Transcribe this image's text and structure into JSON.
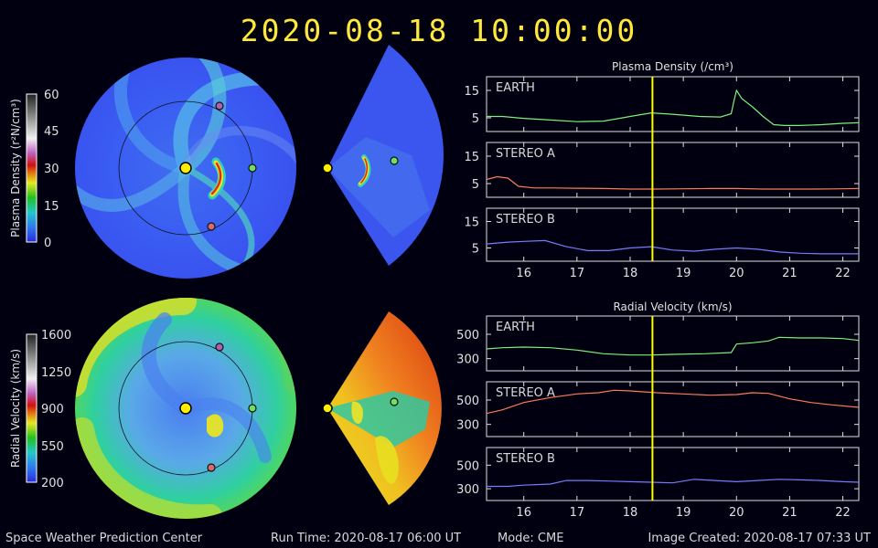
{
  "header": {
    "timestamp": "2020-08-18  10:00:00"
  },
  "colorbars": {
    "density": {
      "label": "Plasma Density (r²N/cm³)",
      "ticks": [
        "60",
        "45",
        "30",
        "15",
        "0"
      ]
    },
    "velocity": {
      "label": "Radial Velocity (km/s)",
      "ticks": [
        "1600",
        "1250",
        "900",
        "550",
        "200"
      ]
    }
  },
  "footer": {
    "org": "Space Weather Prediction Center",
    "run_time": "Run Time: 2020-08-17 06:00 UT",
    "mode": "Mode: CME",
    "created": "Image Created: 2020-08-17 07:33 UT"
  },
  "colors": {
    "title": "#ffe83a",
    "earth": "#7cf07c",
    "stereo_a": "#ff7a5a",
    "stereo_b": "#7a7aff",
    "cursor": "#ffff00"
  },
  "chart_data": [
    {
      "type": "line",
      "title": "Plasma Density (/cm³)",
      "xlim": [
        15.3,
        22.3
      ],
      "x_ticks": [
        16,
        17,
        18,
        19,
        20,
        21,
        22
      ],
      "current_time_x": 18.42,
      "panels": [
        {
          "name": "EARTH",
          "color": "#7cf07c",
          "ylim": [
            0,
            20
          ],
          "y_ticks": [
            5,
            15
          ],
          "x": [
            15.3,
            15.6,
            16.0,
            16.5,
            17.0,
            17.5,
            18.0,
            18.4,
            18.8,
            19.3,
            19.7,
            19.9,
            19.95,
            20.0,
            20.1,
            20.3,
            20.5,
            20.7,
            20.9,
            21.2,
            21.6,
            22.0,
            22.3
          ],
          "y": [
            5.5,
            5.5,
            4.8,
            4.2,
            3.6,
            3.8,
            5.5,
            6.8,
            6.3,
            5.5,
            5.3,
            6.5,
            11,
            15,
            12,
            9,
            5.5,
            2.5,
            2.2,
            2.2,
            2.5,
            3.0,
            3.2
          ]
        },
        {
          "name": "STEREO A",
          "color": "#ff7a5a",
          "ylim": [
            0,
            20
          ],
          "y_ticks": [
            5,
            15
          ],
          "x": [
            15.3,
            15.5,
            15.7,
            15.9,
            16.2,
            16.6,
            17.0,
            17.5,
            18.0,
            18.5,
            19.0,
            19.5,
            20.0,
            20.5,
            21.0,
            21.5,
            22.0,
            22.3
          ],
          "y": [
            6.5,
            7.5,
            7.0,
            4.0,
            3.4,
            3.4,
            3.3,
            3.2,
            3.0,
            3.0,
            3.1,
            3.2,
            3.2,
            3.0,
            3.0,
            3.0,
            3.1,
            3.2
          ]
        },
        {
          "name": "STEREO B",
          "color": "#7a7aff",
          "ylim": [
            0,
            20
          ],
          "y_ticks": [
            5,
            15
          ],
          "x": [
            15.3,
            15.7,
            16.0,
            16.4,
            16.8,
            17.2,
            17.6,
            18.0,
            18.4,
            18.8,
            19.2,
            19.6,
            20.0,
            20.4,
            20.8,
            21.2,
            21.6,
            22.0,
            22.3
          ],
          "y": [
            6.5,
            7.2,
            7.5,
            7.8,
            5.5,
            4.0,
            4.0,
            5.0,
            5.5,
            4.2,
            3.8,
            4.5,
            5.0,
            4.5,
            3.5,
            3.0,
            2.8,
            2.8,
            2.8
          ]
        }
      ]
    },
    {
      "type": "line",
      "title": "Radial Velocity (km/s)",
      "xlim": [
        15.3,
        22.3
      ],
      "x_ticks": [
        16,
        17,
        18,
        19,
        20,
        21,
        22
      ],
      "current_time_x": 18.42,
      "panels": [
        {
          "name": "EARTH",
          "color": "#7cf07c",
          "ylim": [
            200,
            650
          ],
          "y_ticks": [
            300,
            500
          ],
          "x": [
            15.3,
            15.6,
            16.0,
            16.5,
            17.0,
            17.5,
            18.0,
            18.4,
            18.8,
            19.4,
            19.9,
            20.0,
            20.3,
            20.6,
            20.8,
            21.2,
            21.6,
            22.0,
            22.3
          ],
          "y": [
            380,
            390,
            395,
            390,
            370,
            340,
            330,
            330,
            335,
            340,
            350,
            420,
            430,
            445,
            475,
            470,
            470,
            465,
            450
          ]
        },
        {
          "name": "STEREO A",
          "color": "#ff7a5a",
          "ylim": [
            200,
            650
          ],
          "y_ticks": [
            300,
            500
          ],
          "x": [
            15.3,
            15.6,
            16.0,
            16.5,
            17.0,
            17.4,
            17.7,
            18.0,
            18.5,
            19.0,
            19.5,
            20.0,
            20.3,
            20.6,
            21.0,
            21.4,
            21.8,
            22.3
          ],
          "y": [
            390,
            420,
            480,
            520,
            550,
            560,
            580,
            575,
            560,
            550,
            540,
            545,
            560,
            555,
            510,
            480,
            460,
            440
          ]
        },
        {
          "name": "STEREO B",
          "color": "#7a7aff",
          "ylim": [
            200,
            650
          ],
          "y_ticks": [
            300,
            500
          ],
          "x": [
            15.3,
            15.7,
            16.0,
            16.5,
            16.8,
            17.2,
            17.6,
            18.0,
            18.4,
            18.8,
            19.2,
            19.6,
            20.0,
            20.4,
            20.8,
            21.2,
            21.6,
            22.0,
            22.3
          ],
          "y": [
            320,
            320,
            330,
            340,
            370,
            370,
            365,
            360,
            355,
            350,
            380,
            370,
            360,
            370,
            380,
            375,
            370,
            360,
            355
          ]
        }
      ]
    }
  ]
}
